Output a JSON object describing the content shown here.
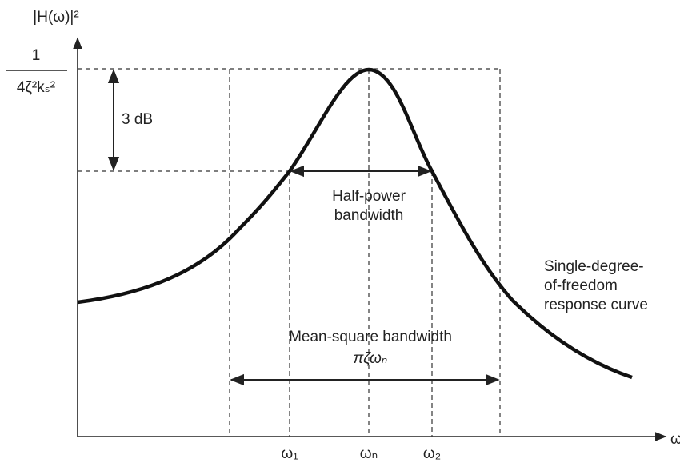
{
  "y_axis_label": "|H(ω)|²",
  "x_axis_label": "ω",
  "peak_label": {
    "numerator": "1",
    "denominator": "4ζ²kₛ²"
  },
  "drop_label": "3 dB",
  "half_power": {
    "lines": [
      "Half-power",
      "bandwidth"
    ]
  },
  "curve_label": {
    "lines": [
      "Single-degree-",
      "of-freedom",
      "response curve"
    ]
  },
  "mean_square": {
    "title": "Mean-square bandwidth",
    "formula": "πζωₙ"
  },
  "x_ticks": [
    "ω₁",
    "ωₙ",
    "ω₂"
  ]
}
